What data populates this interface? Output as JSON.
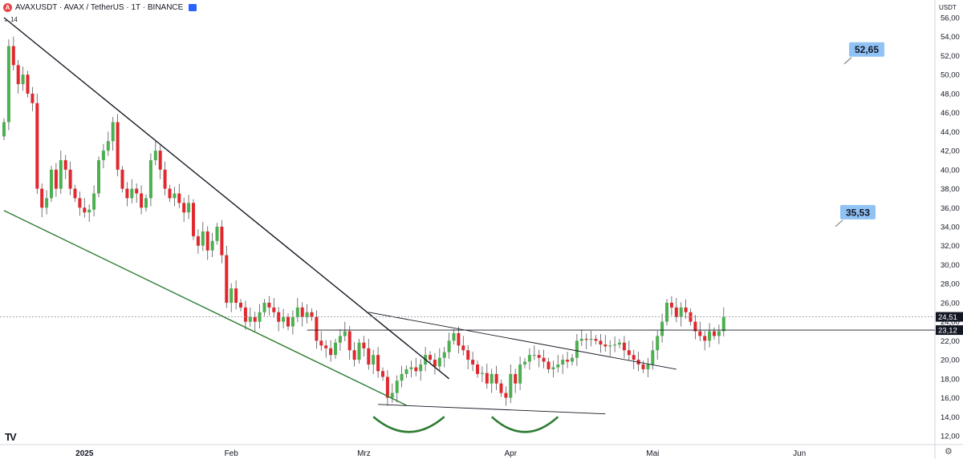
{
  "header": {
    "title": "AVAXUSDT · AVAX / TetherUS · 1T · BINANCE",
    "interval_badge": "14",
    "currency": "USDT"
  },
  "icons": {
    "symbol": "avax-logo-icon",
    "flag": "flag-icon",
    "logo": "tradingview-logo-icon",
    "settings": "settings-icon"
  },
  "colors": {
    "up": "#26a69a",
    "up_body": "#4caf50",
    "down": "#e0282e",
    "trendline": "#131722",
    "support": "#2e7d32",
    "label_bg": "#90c2f5",
    "price_tag": "#131722"
  },
  "chart_data": {
    "type": "candlestick",
    "title": "AVAXUSDT · AVAX / TetherUS · 1T · BINANCE",
    "ylim": [
      12,
      57
    ],
    "y_ticks": [
      "12,00",
      "14,00",
      "16,00",
      "18,00",
      "20,00",
      "22,00",
      "24,00",
      "26,00",
      "28,00",
      "30,00",
      "32,00",
      "34,00",
      "36,00",
      "38,00",
      "40,00",
      "42,00",
      "44,00",
      "46,00",
      "48,00",
      "50,00",
      "52,00",
      "54,00",
      "56,00"
    ],
    "x_ticks": [
      {
        "label": "2025",
        "day": 17
      },
      {
        "label": "Feb",
        "day": 48
      },
      {
        "label": "Mrz",
        "day": 76
      },
      {
        "label": "Apr",
        "day": 107
      },
      {
        "label": "Mai",
        "day": 137
      },
      {
        "label": "Jun",
        "day": 168
      }
    ],
    "start_day": 0,
    "closes": [
      45,
      53,
      51,
      49,
      50,
      48,
      47,
      38,
      36,
      37,
      40,
      38,
      41,
      40,
      38,
      37,
      36,
      35.5,
      35.8,
      37.5,
      41,
      42,
      43,
      45,
      40,
      38,
      37,
      38,
      37.5,
      36,
      37,
      41,
      42,
      40,
      38,
      37,
      37.5,
      36.5,
      35.5,
      36.5,
      33,
      32,
      33.5,
      31.5,
      32.5,
      34,
      31,
      26,
      27.5,
      26,
      25.5,
      24,
      24.5,
      24,
      25,
      26,
      25.5,
      25,
      24,
      24.5,
      23.5,
      24.5,
      25.5,
      24.5,
      25,
      24.5,
      22,
      21.5,
      21.2,
      20.5,
      21.8,
      22.5,
      23,
      21,
      20,
      21.8,
      21.2,
      19.5,
      20.5,
      18.8,
      18.2,
      16,
      16.5,
      17.8,
      18.5,
      19,
      19.2,
      18.8,
      19.5,
      20.5,
      20,
      19.3,
      20.2,
      20.8,
      22,
      22.8,
      21.5,
      21,
      20,
      19.5,
      18.5,
      18.6,
      17.5,
      18.5,
      17.5,
      16.5,
      16,
      18.5,
      17.5,
      19.5,
      19.8,
      20.5,
      20.5,
      20.2,
      19.8,
      19,
      19.2,
      19.5,
      20,
      19.8,
      20.2,
      22,
      22.2,
      22.1,
      22.2,
      22,
      21.6,
      21.4,
      21.5,
      21.6,
      21.8,
      21,
      20.5,
      20,
      19.5,
      19,
      19.5,
      21,
      22.5,
      24,
      26,
      25.5,
      24.5,
      25.5,
      25,
      24,
      23,
      22.5,
      22,
      23,
      22.5,
      23,
      24.51
    ],
    "current_price": "24,51",
    "horizontal_level": "23,12",
    "targets": [
      "52,65",
      "35,53"
    ],
    "annotations": [
      {
        "type": "trendline",
        "from": {
          "day": 0,
          "price": 56
        },
        "to": {
          "day": 94,
          "price": 18
        }
      },
      {
        "type": "trendline",
        "from": {
          "day": 0,
          "price": 35.7
        },
        "to": {
          "day": 85,
          "price": 15.2
        }
      },
      {
        "type": "trendline",
        "from": {
          "day": 77,
          "price": 25
        },
        "to": {
          "day": 142,
          "price": 19
        }
      },
      {
        "type": "trendline",
        "from": {
          "day": 79,
          "price": 15.3
        },
        "to": {
          "day": 127,
          "price": 14.3
        }
      },
      {
        "type": "hline",
        "from_day": 64,
        "price": 23.12
      },
      {
        "type": "arc",
        "from": {
          "day": 78,
          "price": 14
        },
        "to": {
          "day": 93,
          "price": 14
        },
        "depth": 1.6
      },
      {
        "type": "arc",
        "from": {
          "day": 103,
          "price": 14
        },
        "to": {
          "day": 117,
          "price": 14
        },
        "depth": 1.6
      }
    ]
  }
}
